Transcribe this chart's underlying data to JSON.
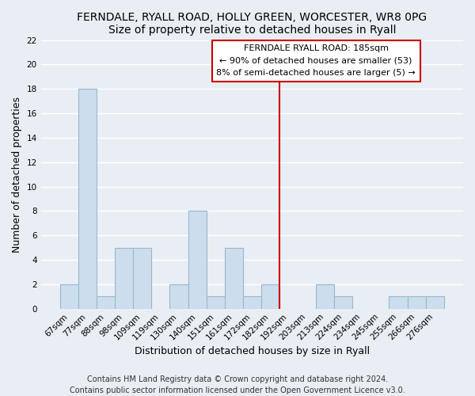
{
  "title": "FERNDALE, RYALL ROAD, HOLLY GREEN, WORCESTER, WR8 0PG",
  "subtitle": "Size of property relative to detached houses in Ryall",
  "xlabel": "Distribution of detached houses by size in Ryall",
  "ylabel": "Number of detached properties",
  "bar_labels": [
    "67sqm",
    "77sqm",
    "88sqm",
    "98sqm",
    "109sqm",
    "119sqm",
    "130sqm",
    "140sqm",
    "151sqm",
    "161sqm",
    "172sqm",
    "182sqm",
    "192sqm",
    "203sqm",
    "213sqm",
    "224sqm",
    "234sqm",
    "245sqm",
    "255sqm",
    "266sqm",
    "276sqm"
  ],
  "bar_values": [
    2,
    18,
    1,
    5,
    5,
    0,
    2,
    8,
    1,
    5,
    1,
    2,
    0,
    0,
    2,
    1,
    0,
    0,
    1,
    1,
    1
  ],
  "bar_color": "#ccdded",
  "bar_edge_color": "#9ab8cc",
  "vline_color": "#cc0000",
  "ylim": [
    0,
    22
  ],
  "yticks": [
    0,
    2,
    4,
    6,
    8,
    10,
    12,
    14,
    16,
    18,
    20,
    22
  ],
  "annotation_title": "FERNDALE RYALL ROAD: 185sqm",
  "annotation_line1": "← 90% of detached houses are smaller (53)",
  "annotation_line2": "8% of semi-detached houses are larger (5) →",
  "footer1": "Contains HM Land Registry data © Crown copyright and database right 2024.",
  "footer2": "Contains public sector information licensed under the Open Government Licence v3.0.",
  "background_color": "#e8eef4",
  "grid_color": "#d0dce8",
  "title_fontsize": 10,
  "subtitle_fontsize": 9.5,
  "axis_label_fontsize": 9,
  "tick_fontsize": 7.5,
  "annotation_fontsize": 8,
  "footer_fontsize": 7
}
